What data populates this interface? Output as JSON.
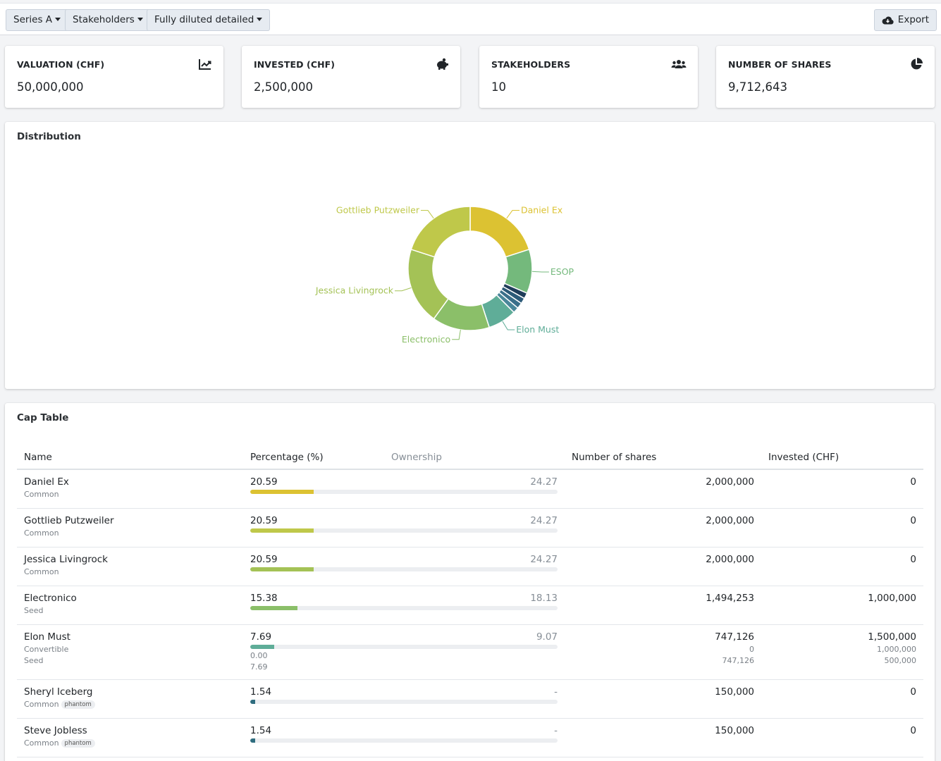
{
  "toolbar": {
    "round": "Series A",
    "view": "Stakeholders",
    "mode": "Fully diluted detailed",
    "export": "Export"
  },
  "stats": [
    {
      "title": "VALUATION (CHF)",
      "value": "50,000,000",
      "icon": "chart-line-icon"
    },
    {
      "title": "INVESTED (CHF)",
      "value": "2,500,000",
      "icon": "piggy-bank-icon"
    },
    {
      "title": "STAKEHOLDERS",
      "value": "10",
      "icon": "users-icon"
    },
    {
      "title": "NUMBER OF SHARES",
      "value": "9,712,643",
      "icon": "pie-chart-icon"
    }
  ],
  "distribution": {
    "title": "Distribution",
    "chart_data": {
      "type": "pie",
      "donut": true,
      "slices": [
        {
          "label": "Daniel Ex",
          "value": 20.59,
          "color": "#dcc232"
        },
        {
          "label": "ESOP",
          "value": 11.84,
          "color": "#74b97c"
        },
        {
          "label": "",
          "value": 1.54,
          "color": "#1f3d5a"
        },
        {
          "label": "",
          "value": 1.54,
          "color": "#2c5a78"
        },
        {
          "label": "",
          "value": 1.54,
          "color": "#3a6f8a"
        },
        {
          "label": "",
          "value": 1.54,
          "color": "#4a879a"
        },
        {
          "label": "Elon Must",
          "value": 7.69,
          "color": "#5fad98"
        },
        {
          "label": "Electronico",
          "value": 15.38,
          "color": "#8bbf69"
        },
        {
          "label": "Jessica Livingrock",
          "value": 20.59,
          "color": "#a4c256"
        },
        {
          "label": "Gottlieb Putzweiler",
          "value": 20.59,
          "color": "#bfc84a"
        }
      ]
    }
  },
  "cap_table": {
    "title": "Cap Table",
    "headers": {
      "name": "Name",
      "percentage": "Percentage (%)",
      "ownership": "Ownership",
      "shares": "Number of shares",
      "invested": "Invested (CHF)"
    },
    "rows": [
      {
        "name": "Daniel Ex",
        "classes": [
          "Common"
        ],
        "badge": "",
        "pct": "20.59",
        "pct_value": 20.59,
        "pct_subs": [],
        "ownership": "24.27",
        "shares": "2,000,000",
        "shares_subs": [],
        "invested": "0",
        "invested_subs": [],
        "color": "#dcc232"
      },
      {
        "name": "Gottlieb Putzweiler",
        "classes": [
          "Common"
        ],
        "badge": "",
        "pct": "20.59",
        "pct_value": 20.59,
        "pct_subs": [],
        "ownership": "24.27",
        "shares": "2,000,000",
        "shares_subs": [],
        "invested": "0",
        "invested_subs": [],
        "color": "#bfc84a"
      },
      {
        "name": "Jessica Livingrock",
        "classes": [
          "Common"
        ],
        "badge": "",
        "pct": "20.59",
        "pct_value": 20.59,
        "pct_subs": [],
        "ownership": "24.27",
        "shares": "2,000,000",
        "shares_subs": [],
        "invested": "0",
        "invested_subs": [],
        "color": "#a4c256"
      },
      {
        "name": "Electronico",
        "classes": [
          "Seed"
        ],
        "badge": "",
        "pct": "15.38",
        "pct_value": 15.38,
        "pct_subs": [],
        "ownership": "18.13",
        "shares": "1,494,253",
        "shares_subs": [],
        "invested": "1,000,000",
        "invested_subs": [],
        "color": "#8bbf69"
      },
      {
        "name": "Elon Must",
        "classes": [
          "Convertible",
          "Seed"
        ],
        "badge": "",
        "pct": "7.69",
        "pct_value": 7.69,
        "pct_subs": [
          "0.00",
          "7.69"
        ],
        "ownership": "9.07",
        "shares": "747,126",
        "shares_subs": [
          "0",
          "747,126"
        ],
        "invested": "1,500,000",
        "invested_subs": [
          "1,000,000",
          "500,000"
        ],
        "color": "#5fad98"
      },
      {
        "name": "Sheryl Iceberg",
        "classes": [
          "Common"
        ],
        "badge": "phantom",
        "pct": "1.54",
        "pct_value": 1.54,
        "pct_subs": [],
        "ownership": "-",
        "shares": "150,000",
        "shares_subs": [],
        "invested": "0",
        "invested_subs": [],
        "color": "#2f6d7f"
      },
      {
        "name": "Steve Jobless",
        "classes": [
          "Common"
        ],
        "badge": "phantom",
        "pct": "1.54",
        "pct_value": 1.54,
        "pct_subs": [],
        "ownership": "-",
        "shares": "150,000",
        "shares_subs": [],
        "invested": "0",
        "invested_subs": [],
        "color": "#2f6d7f"
      }
    ]
  }
}
